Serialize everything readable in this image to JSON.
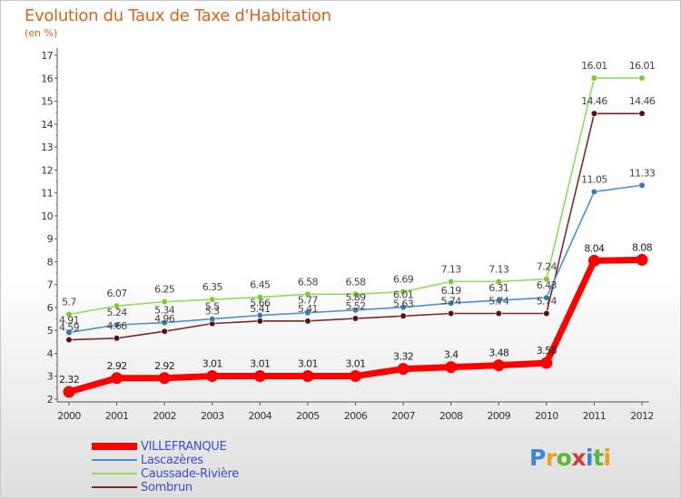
{
  "chart_data": {
    "type": "line",
    "title": "Evolution du Taux de Taxe d'Habitation",
    "ylabel": "(en %)",
    "xlabel": "",
    "ylim": [
      2,
      17
    ],
    "yticks": [
      2,
      3,
      4,
      5,
      6,
      7,
      8,
      9,
      10,
      11,
      12,
      13,
      14,
      15,
      16,
      17
    ],
    "categories": [
      "2000",
      "2001",
      "2002",
      "2003",
      "2004",
      "2005",
      "2006",
      "2007",
      "2008",
      "2009",
      "2010",
      "2011",
      "2012"
    ],
    "series": [
      {
        "name": "VILLEFRANQUE",
        "color": "#ff0000",
        "emphasis": true,
        "values": [
          2.32,
          2.92,
          2.92,
          3.01,
          3.01,
          3.01,
          3.01,
          3.32,
          3.4,
          3.48,
          3.58,
          8.04,
          8.08
        ],
        "labels": [
          "2.32",
          "2.92",
          "2.92",
          "3.01",
          "3.01",
          "3.01",
          "3.01",
          "3.32",
          "3.4",
          "3.48",
          "3.58",
          "8.04",
          "8.08"
        ]
      },
      {
        "name": "Lascazères",
        "color": "#4a8fcf",
        "marker": "#3a78b8",
        "values": [
          4.91,
          5.24,
          5.34,
          5.5,
          5.66,
          5.77,
          5.89,
          6.01,
          6.19,
          6.31,
          6.43,
          11.05,
          11.33
        ],
        "labels": [
          "4.91",
          "5.24",
          "5.34",
          "5.5",
          "5.66",
          "5.77",
          "5.89",
          "6.01",
          "6.19",
          "6.31",
          "6.43",
          "11.05",
          "11.33"
        ]
      },
      {
        "name": "Caussade-Rivière",
        "color": "#8fdc5a",
        "marker": "#7acc30",
        "values": [
          5.7,
          6.07,
          6.25,
          6.35,
          6.45,
          6.58,
          6.58,
          6.69,
          7.13,
          7.13,
          7.24,
          16.01,
          16.01
        ],
        "labels": [
          "5.7",
          "6.07",
          "6.25",
          "6.35",
          "6.45",
          "6.58",
          "6.58",
          "6.69",
          "7.13",
          "7.13",
          "7.24",
          "16.01",
          "16.01"
        ]
      },
      {
        "name": "Sombrun",
        "color": "#7a2a2a",
        "marker": "#5a1010",
        "values": [
          4.59,
          4.66,
          4.96,
          5.3,
          5.41,
          5.41,
          5.52,
          5.63,
          5.74,
          5.74,
          5.74,
          14.46,
          14.46
        ],
        "labels": [
          "4.59",
          "4.66",
          "4.96",
          "5.3",
          "5.41",
          "5.41",
          "5.52",
          "5.63",
          "5.74",
          "5.74",
          "5.74",
          "14.46",
          "14.46"
        ]
      }
    ]
  },
  "logo": {
    "text": "Proxiti"
  }
}
